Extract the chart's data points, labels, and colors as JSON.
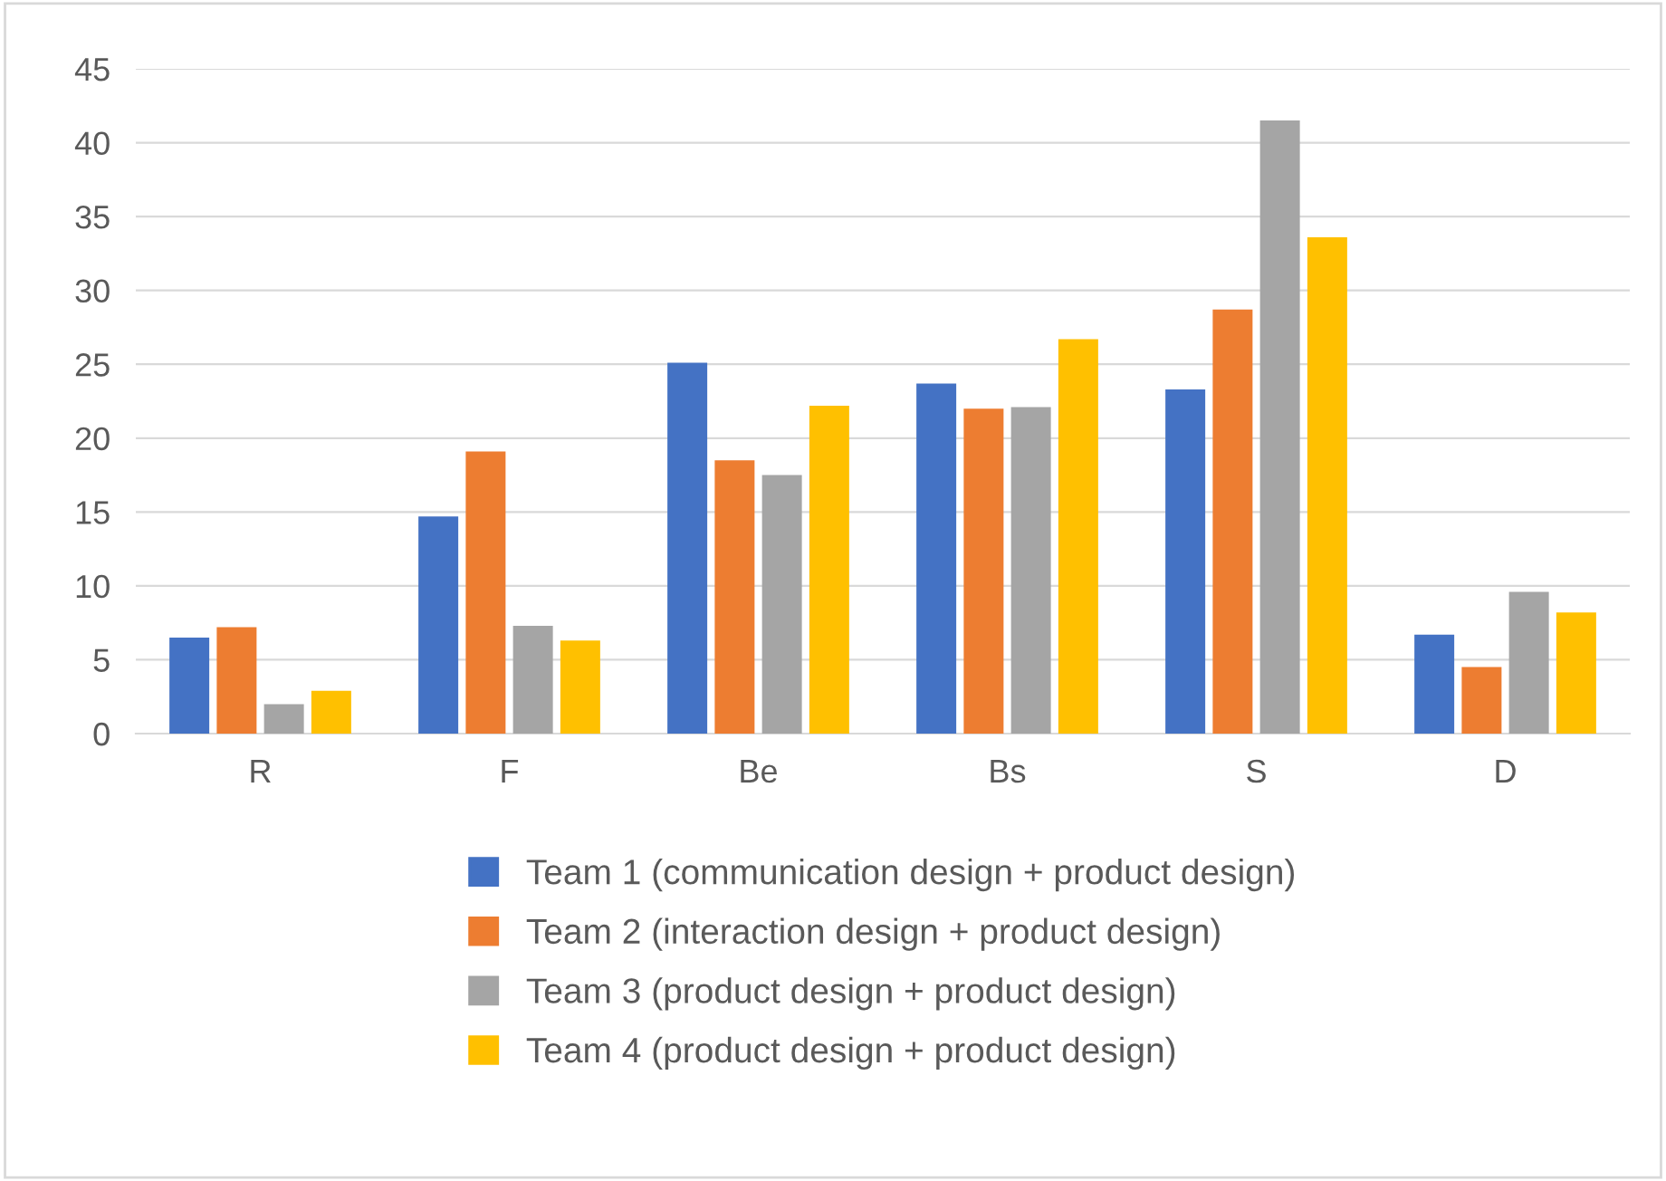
{
  "chart_data": {
    "type": "bar",
    "categories": [
      "R",
      "F",
      "Be",
      "Bs",
      "S",
      "D"
    ],
    "series": [
      {
        "name": "Team 1 (communication design + product design)",
        "color": "#4472c4",
        "values": [
          6.5,
          14.7,
          25.1,
          23.7,
          23.3,
          6.7
        ]
      },
      {
        "name": "Team 2 (interaction design + product design)",
        "color": "#ed7d31",
        "values": [
          7.2,
          19.1,
          18.5,
          22.0,
          28.7,
          4.5
        ]
      },
      {
        "name": "Team 3 (product design + product design)",
        "color": "#a5a5a5",
        "values": [
          2.0,
          7.3,
          17.5,
          22.1,
          41.5,
          9.6
        ]
      },
      {
        "name": "Team 4 (product design + product design)",
        "color": "#ffc000",
        "values": [
          2.9,
          6.3,
          22.2,
          26.7,
          33.6,
          8.2
        ]
      }
    ],
    "ylim": [
      0,
      45
    ],
    "yticks": [
      0,
      5,
      10,
      15,
      20,
      25,
      30,
      35,
      40,
      45
    ],
    "grid": "y",
    "legend": "bottom"
  }
}
